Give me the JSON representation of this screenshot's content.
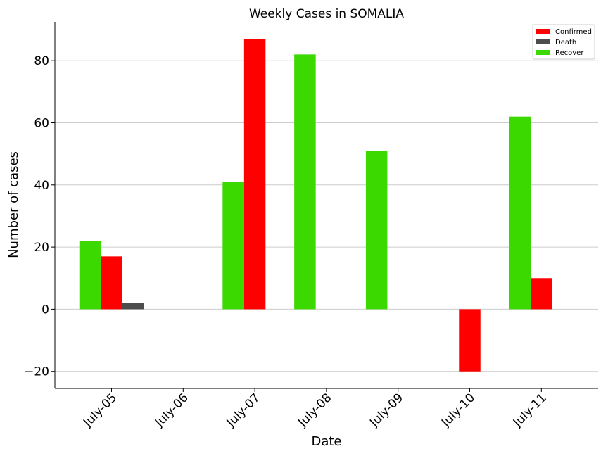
{
  "chart_data": {
    "type": "bar",
    "title": "Weekly Cases in SOMALIA",
    "xlabel": "Date",
    "ylabel": "Number of cases",
    "categories": [
      "July-05",
      "July-06",
      "July-07",
      "July-08",
      "July-09",
      "July-10",
      "July-11"
    ],
    "series": [
      {
        "name": "Recover",
        "color": "#3bd900",
        "values": [
          22,
          0,
          41,
          82,
          51,
          0,
          62
        ]
      },
      {
        "name": "Confirmed",
        "color": "#ff0000",
        "values": [
          17,
          0,
          87,
          0,
          0,
          -20,
          10
        ]
      },
      {
        "name": "Death",
        "color": "#4d4d4d",
        "values": [
          2,
          0,
          0,
          0,
          0,
          0,
          0
        ]
      }
    ],
    "legend_order": [
      "Confirmed",
      "Death",
      "Recover"
    ],
    "legend_position": "top-right",
    "ylim": [
      -25.5,
      92.5
    ],
    "yticks": [
      -20,
      0,
      20,
      40,
      60,
      80
    ],
    "ytick_labels": [
      "−20",
      "0",
      "20",
      "40",
      "60",
      "80"
    ],
    "grid": "horizontal"
  }
}
